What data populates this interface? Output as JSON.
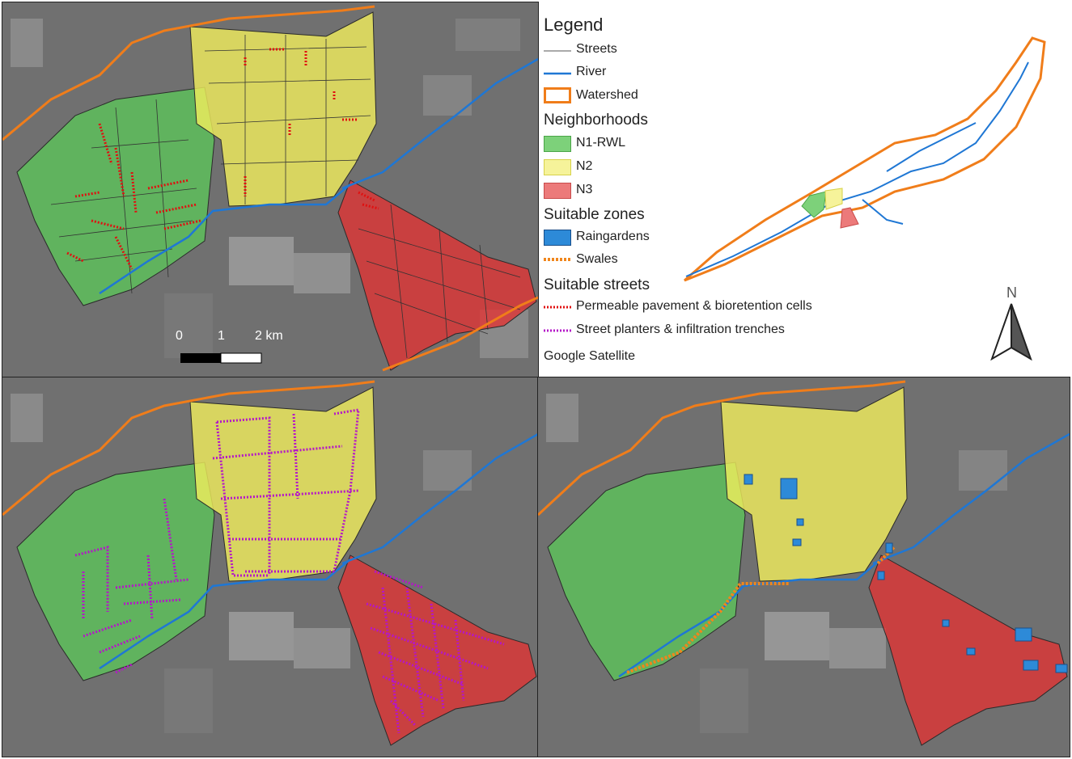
{
  "legend": {
    "title": "Legend",
    "streets": "Streets",
    "river": "River",
    "watershed": "Watershed",
    "neighborhoods_head": "Neighborhoods",
    "n1": "N1-RWL",
    "n2": "N2",
    "n3": "N3",
    "suitable_zones_head": "Suitable zones",
    "raingardens": "Raingardens",
    "swales": "Swales",
    "suitable_streets_head": "Suitable streets",
    "permeable": "Permeable pavement & bioretention cells",
    "planters": "Street planters & infiltration trenches",
    "basemap": "Google Satellite"
  },
  "north_arrow": "N",
  "scale_bar": {
    "label_0": "0",
    "label_1": "1",
    "label_2": "2 km"
  },
  "colors": {
    "n1": "#5cc45a",
    "n2": "#f3ef5c",
    "n3": "#e03535",
    "river": "#1f77d4",
    "watershed": "#f07d1a",
    "permeable": "#e01010",
    "planters": "#b416c8",
    "raingarden": "#2d8ad8",
    "swale": "#f0861c",
    "streets": "#333333",
    "satellite": "#6f6f6f"
  },
  "icons": [
    "north-arrow-icon",
    "scale-bar"
  ]
}
